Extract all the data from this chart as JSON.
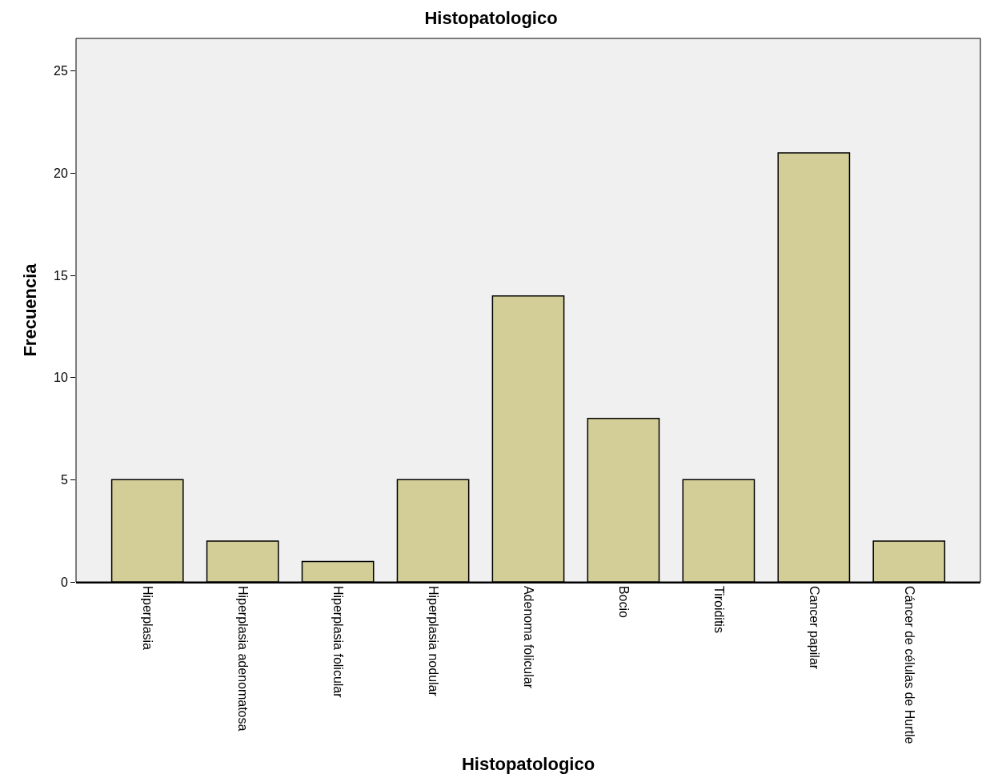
{
  "chart_data": {
    "type": "bar",
    "title": "Histopatologico",
    "xlabel": "Histopatologico",
    "ylabel": "Frecuencia",
    "categories": [
      "Hiperplasia",
      "Hiperplasia adenomatosa",
      "Hiperplasia folicular",
      "Hiperplasia nodular",
      "Adenoma folicular",
      "Bocio",
      "Tiroiditis",
      "Cancer papilar",
      "Cáncer de células de Hurtle"
    ],
    "values": [
      5,
      2,
      1,
      5,
      14,
      8,
      5,
      21,
      2
    ],
    "color": "#d3ce97",
    "ylim": [
      0,
      26.6
    ],
    "yticks": [
      0,
      5,
      10,
      15,
      20,
      25
    ],
    "grid": false
  }
}
